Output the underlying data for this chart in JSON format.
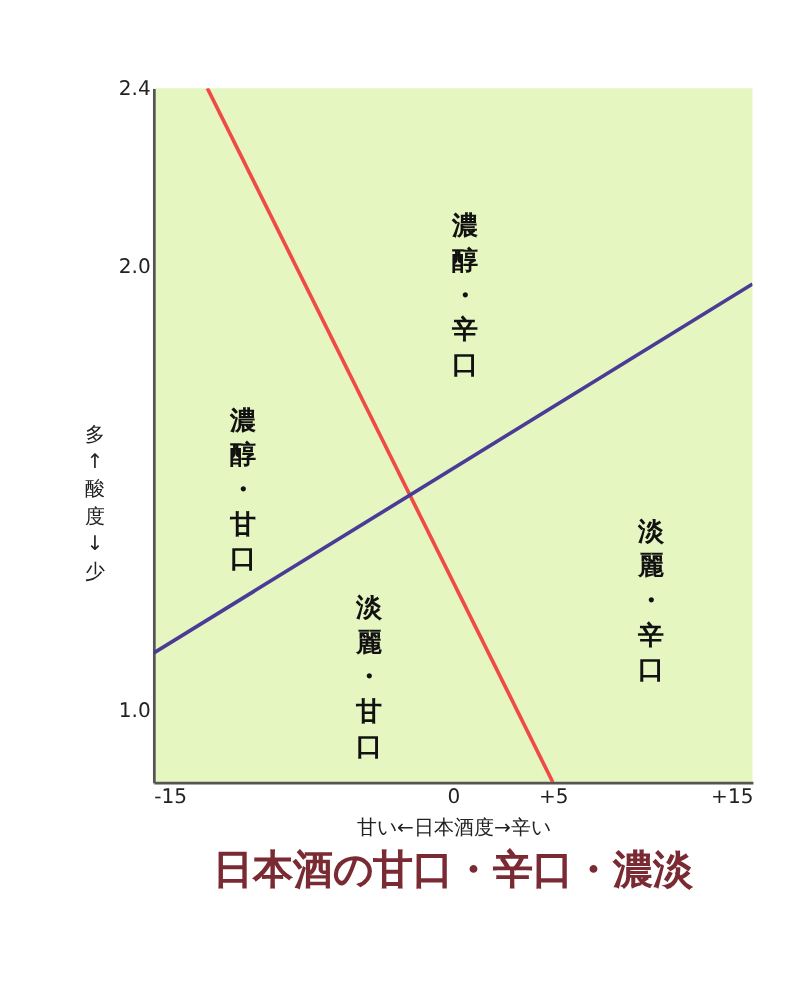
{
  "chart_data": {
    "type": "line",
    "title": "日本酒の甘口・辛口・濃淡",
    "xlabel": "甘い←日本酒度→辛い",
    "ylabel": "多↑酸度↓少",
    "xlim": [
      -15,
      15
    ],
    "xticks": [
      -15,
      0,
      {
        "value": 5,
        "label": "+5"
      },
      {
        "value": 15,
        "label": "+15"
      }
    ],
    "ylim": [
      0.84,
      2.4
    ],
    "yticks": [
      {
        "value": 1,
        "label": "1.0"
      },
      {
        "value": 2,
        "label": "2.0"
      },
      2.4
    ],
    "grid": false,
    "marker": "none",
    "line_style": "solid",
    "series": [
      {
        "color": "#f04a46",
        "x": [
          -12.3,
          5
        ],
        "values": [
          2.4,
          0.84
        ]
      },
      {
        "color": "#4a3c96",
        "x": [
          -15,
          15
        ],
        "values": [
          1.13,
          1.96
        ]
      }
    ],
    "annotations": [
      "濃醇・辛口",
      "濃醇・甘口",
      "淡麗・辛口",
      "淡麗・甘口"
    ]
  }
}
